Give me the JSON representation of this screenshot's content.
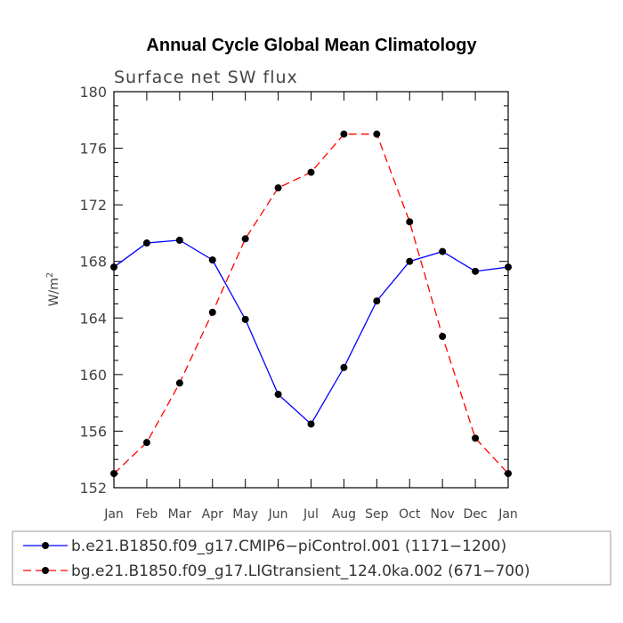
{
  "chart_data": {
    "type": "line",
    "title": "Annual Cycle Global Mean Climatology",
    "subtitle": "Surface net SW flux",
    "ylabel": "W/m",
    "ylabel_sup": "2",
    "xlabel": "",
    "ylim": [
      152,
      180
    ],
    "yticks": [
      152,
      156,
      160,
      164,
      168,
      172,
      176,
      180
    ],
    "categories": [
      "Jan",
      "Feb",
      "Mar",
      "Apr",
      "May",
      "Jun",
      "Jul",
      "Aug",
      "Sep",
      "Oct",
      "Nov",
      "Dec",
      "Jan"
    ],
    "series": [
      {
        "name": "b.e21.B1850.f09_g17.CMIP6−piControl.001 (1171−1200)",
        "color": "#0000ff",
        "dash": "solid",
        "values": [
          167.6,
          169.3,
          169.5,
          168.1,
          163.9,
          158.6,
          156.5,
          160.5,
          165.2,
          168.0,
          168.7,
          167.3,
          167.6
        ]
      },
      {
        "name": "bg.e21.B1850.f09_g17.LIGtransient_124.0ka.002 (671−700)",
        "color": "#ff0000",
        "dash": "dashed",
        "values": [
          153.0,
          155.2,
          159.4,
          164.4,
          169.6,
          173.2,
          174.3,
          177.0,
          177.0,
          170.8,
          162.7,
          155.5,
          153.0
        ]
      }
    ]
  }
}
